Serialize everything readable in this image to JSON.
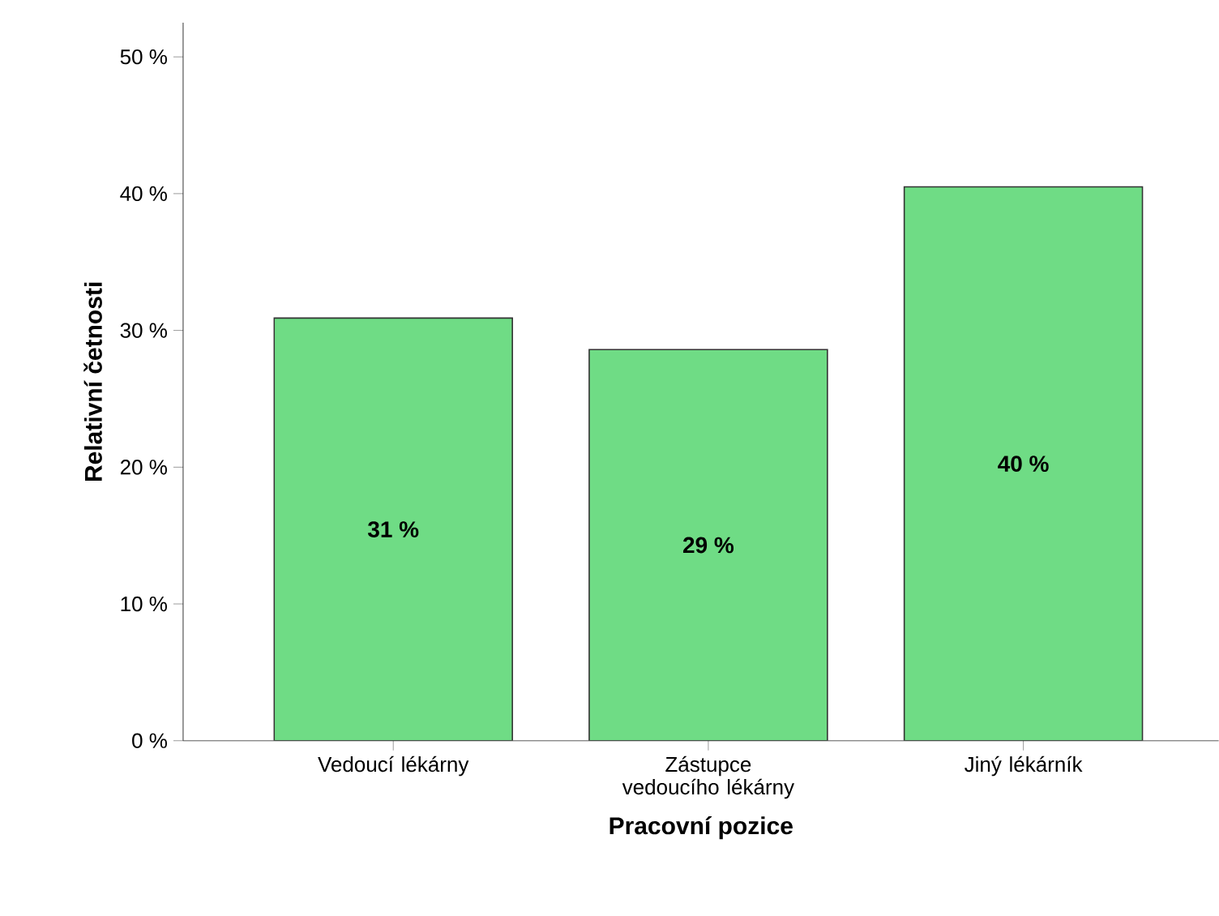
{
  "chart_data": {
    "type": "bar",
    "xlabel": "Pracovní pozice",
    "ylabel": "Relativní četnosti",
    "categories": [
      "Vedoucí lékárny",
      "Zástupce vedoucího lékárny",
      "Jiný lékárník"
    ],
    "values": [
      30.9,
      28.6,
      40.5
    ],
    "value_labels": [
      "31 %",
      "29 %",
      "40 %"
    ],
    "color": "#6fdc85",
    "ylim": [
      0,
      52.5
    ],
    "yticks": [
      {
        "value": 0,
        "label": "0 %"
      },
      {
        "value": 10,
        "label": "10 %"
      },
      {
        "value": 20,
        "label": "20 %"
      },
      {
        "value": 30,
        "label": "30 %"
      },
      {
        "value": 40,
        "label": "40 %"
      },
      {
        "value": 50,
        "label": "50 %"
      }
    ],
    "grid": false
  }
}
